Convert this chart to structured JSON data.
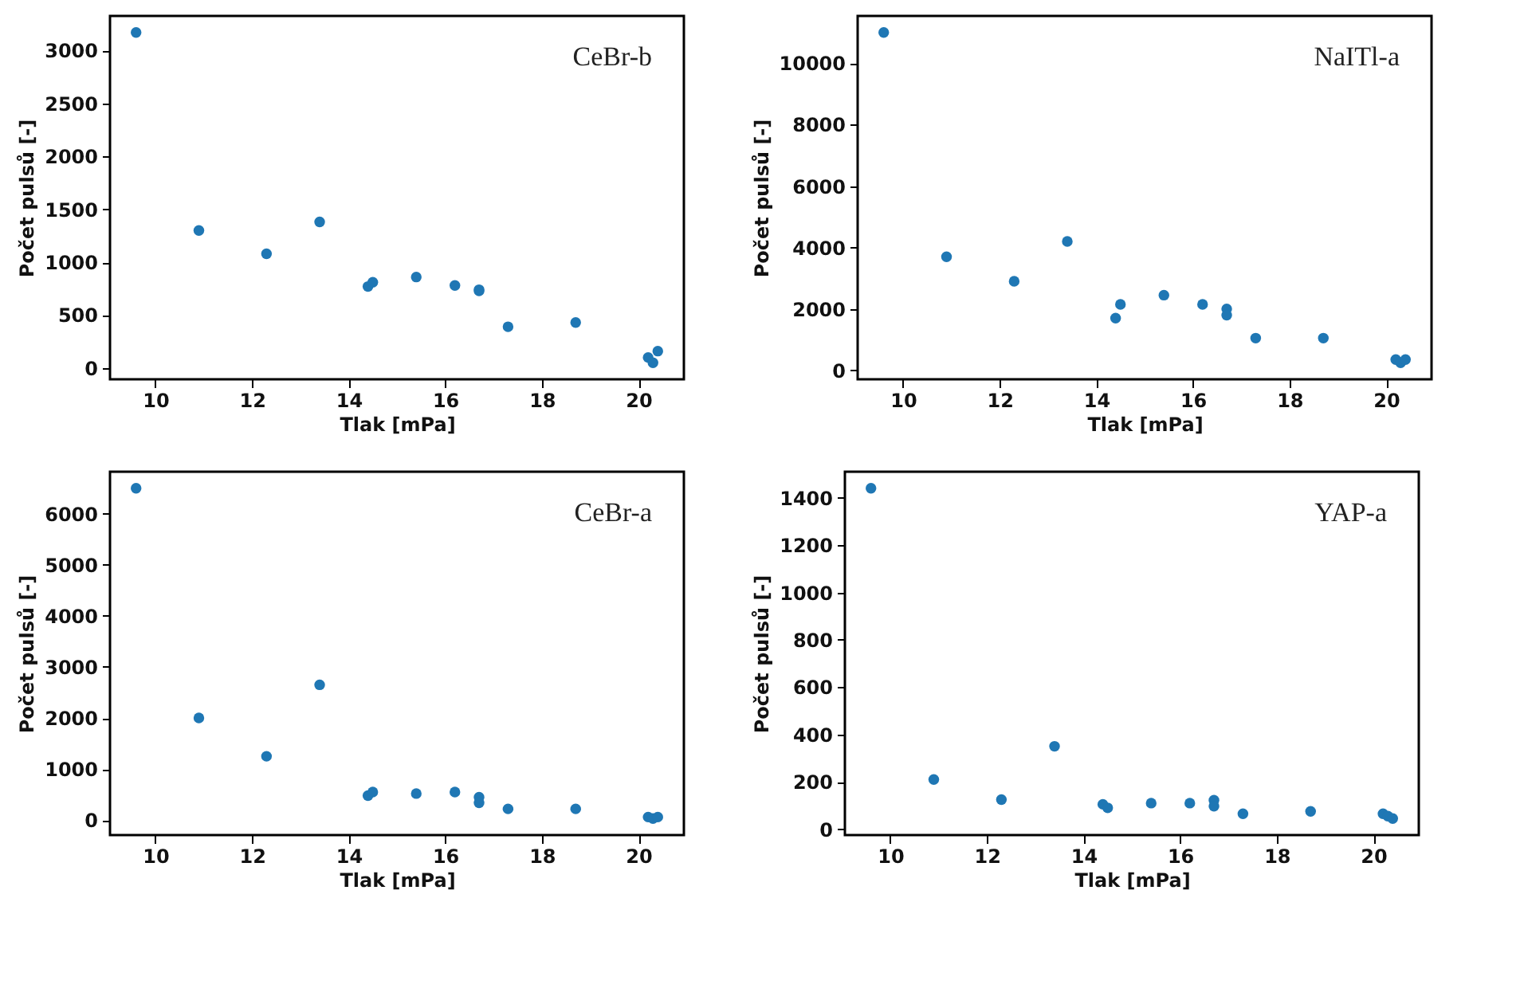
{
  "chart_data": [
    {
      "type": "scatter",
      "xlabel": "Tlak [mPa]",
      "ylabel": "Počet pulsů [-]",
      "annotations": [
        "CeBr-b"
      ],
      "xlim": [
        9.06,
        20.94
      ],
      "xticks": [
        10,
        12,
        14,
        16,
        18,
        20
      ],
      "ylim": [
        -106,
        3326
      ],
      "yticks": [
        0,
        500,
        1000,
        1500,
        2000,
        2500,
        3000
      ],
      "marker": "circle",
      "series": [
        {
          "color": "#1f77b4",
          "x": [
            9.6,
            10.9,
            12.3,
            13.4,
            14.4,
            14.5,
            15.4,
            16.2,
            16.7,
            16.7,
            17.3,
            18.7,
            20.2,
            20.3,
            20.4
          ],
          "values": [
            3170,
            1300,
            1080,
            1380,
            770,
            810,
            860,
            780,
            730,
            740,
            390,
            430,
            100,
            50,
            160
          ]
        }
      ]
    },
    {
      "type": "scatter",
      "xlabel": "Tlak [mPa]",
      "ylabel": "Počet pulsů [-]",
      "annotations": [
        "NaITl-a"
      ],
      "xlim": [
        9.06,
        20.94
      ],
      "xticks": [
        10,
        12,
        14,
        16,
        18,
        20
      ],
      "ylim": [
        -290,
        11540
      ],
      "yticks": [
        0,
        2000,
        4000,
        6000,
        8000,
        10000
      ],
      "marker": "circle",
      "series": [
        {
          "color": "#1f77b4",
          "x": [
            9.6,
            10.9,
            12.3,
            13.4,
            14.4,
            14.5,
            15.4,
            16.2,
            16.7,
            16.7,
            17.3,
            18.7,
            20.2,
            20.3,
            20.4
          ],
          "values": [
            11000,
            3700,
            2900,
            4200,
            1700,
            2150,
            2450,
            2150,
            2000,
            1800,
            1050,
            1050,
            350,
            250,
            350
          ]
        }
      ]
    },
    {
      "type": "scatter",
      "xlabel": "Tlak [mPa]",
      "ylabel": "Počet pulsů [-]",
      "annotations": [
        "CeBr-a"
      ],
      "xlim": [
        9.06,
        20.94
      ],
      "xticks": [
        10,
        12,
        14,
        16,
        18,
        20
      ],
      "ylim": [
        -293,
        6823
      ],
      "yticks": [
        0,
        1000,
        2000,
        3000,
        4000,
        5000,
        6000
      ],
      "marker": "circle",
      "series": [
        {
          "color": "#1f77b4",
          "x": [
            9.6,
            10.9,
            12.3,
            13.4,
            14.4,
            14.5,
            15.4,
            16.2,
            16.7,
            16.7,
            17.3,
            18.7,
            20.2,
            20.3,
            20.4
          ],
          "values": [
            6500,
            2000,
            1250,
            2650,
            480,
            550,
            520,
            550,
            450,
            340,
            220,
            220,
            60,
            30,
            60
          ]
        }
      ]
    },
    {
      "type": "scatter",
      "xlabel": "Tlak [mPa]",
      "ylabel": "Počet pulsů [-]",
      "annotations": [
        "YAP-a"
      ],
      "xlim": [
        9.06,
        20.94
      ],
      "xticks": [
        10,
        12,
        14,
        16,
        18,
        20
      ],
      "ylim": [
        -25,
        1510
      ],
      "yticks": [
        0,
        200,
        400,
        600,
        800,
        1000,
        1200,
        1400
      ],
      "marker": "circle",
      "series": [
        {
          "color": "#1f77b4",
          "x": [
            9.6,
            10.9,
            12.3,
            13.4,
            14.4,
            14.5,
            15.4,
            16.2,
            16.7,
            16.7,
            17.3,
            18.7,
            20.2,
            20.3,
            20.4
          ],
          "values": [
            1440,
            210,
            125,
            350,
            105,
            90,
            110,
            110,
            122,
            97,
            65,
            75,
            65,
            55,
            45
          ]
        }
      ]
    }
  ]
}
